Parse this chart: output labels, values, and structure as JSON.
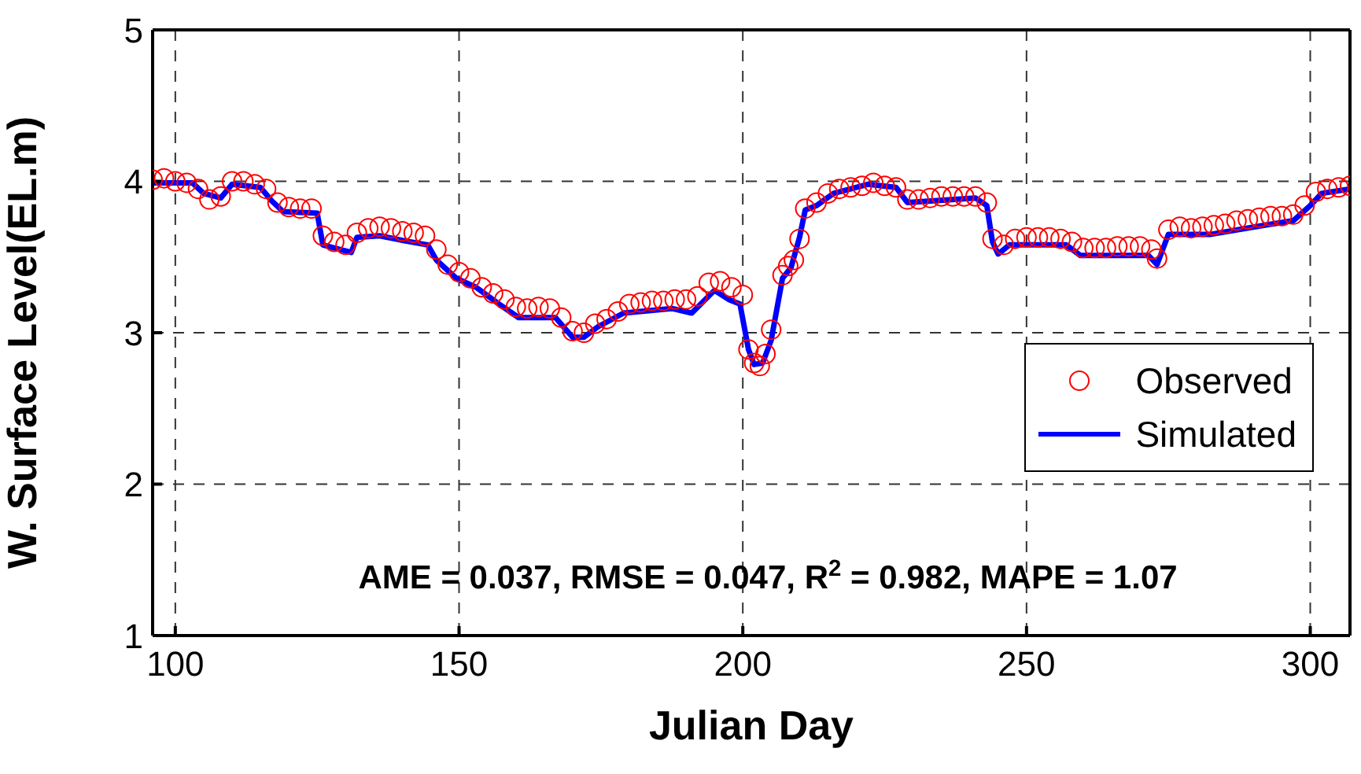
{
  "chart_data": {
    "type": "line",
    "xlabel": "Julian Day",
    "ylabel": "W. Surface Level(EL.m)",
    "xlim": [
      96,
      307
    ],
    "xticks": [
      100,
      150,
      200,
      250,
      300
    ],
    "ylim": [
      1,
      5
    ],
    "yticks": [
      1,
      2,
      3,
      4,
      5
    ],
    "grid": true,
    "legend": "right",
    "annotations": [
      "AME = 0.037, RMSE = 0.047, R$^{2}$ = 0.982, MAPE = 1.07"
    ],
    "series": [
      {
        "name": "Observed",
        "type": "scatter",
        "marker": "circle",
        "color": "#ff0000",
        "x": [
          96,
          98,
          100,
          102,
          104,
          106,
          108,
          110,
          112,
          114,
          116,
          118,
          120,
          122,
          124,
          126,
          128,
          130,
          132,
          134,
          136,
          138,
          140,
          142,
          144,
          146,
          148,
          150,
          152,
          154,
          156,
          158,
          160,
          162,
          164,
          166,
          168,
          170,
          172,
          174,
          176,
          178,
          180,
          182,
          184,
          186,
          188,
          190,
          192,
          194,
          196,
          198,
          200,
          201,
          202,
          203,
          204,
          205,
          207,
          208,
          209,
          210,
          211,
          213,
          215,
          217,
          219,
          221,
          223,
          225,
          227,
          229,
          231,
          233,
          235,
          237,
          239,
          241,
          243,
          244,
          246,
          248,
          250,
          252,
          254,
          256,
          258,
          260,
          262,
          264,
          266,
          268,
          270,
          272,
          273,
          275,
          277,
          279,
          281,
          283,
          285,
          287,
          289,
          291,
          293,
          295,
          297,
          299,
          301,
          303,
          305,
          307
        ],
        "values": [
          4.01,
          4.02,
          4.0,
          3.99,
          3.95,
          3.88,
          3.9,
          4.0,
          4.0,
          3.98,
          3.95,
          3.86,
          3.83,
          3.82,
          3.82,
          3.64,
          3.6,
          3.58,
          3.66,
          3.69,
          3.7,
          3.69,
          3.67,
          3.66,
          3.64,
          3.55,
          3.45,
          3.4,
          3.36,
          3.3,
          3.26,
          3.22,
          3.17,
          3.16,
          3.17,
          3.16,
          3.1,
          3.01,
          3.0,
          3.06,
          3.09,
          3.14,
          3.19,
          3.2,
          3.21,
          3.21,
          3.22,
          3.22,
          3.24,
          3.33,
          3.34,
          3.3,
          3.25,
          2.89,
          2.8,
          2.78,
          2.86,
          3.02,
          3.38,
          3.44,
          3.48,
          3.62,
          3.82,
          3.86,
          3.92,
          3.95,
          3.96,
          3.97,
          3.99,
          3.97,
          3.96,
          3.88,
          3.88,
          3.89,
          3.9,
          3.9,
          3.9,
          3.9,
          3.86,
          3.62,
          3.58,
          3.62,
          3.63,
          3.63,
          3.63,
          3.62,
          3.6,
          3.56,
          3.56,
          3.56,
          3.57,
          3.57,
          3.57,
          3.55,
          3.49,
          3.68,
          3.7,
          3.69,
          3.7,
          3.71,
          3.72,
          3.74,
          3.75,
          3.76,
          3.77,
          3.77,
          3.78,
          3.84,
          3.93,
          3.95,
          3.96,
          3.97
        ]
      },
      {
        "name": "Simulated",
        "line_style": "solid",
        "color": "#0000ff",
        "x": [
          96,
          103,
          105,
          108,
          110,
          115,
          117,
          119,
          125,
          126,
          129,
          131,
          132,
          136,
          140,
          144.5,
          146,
          149.5,
          153,
          157,
          160.5,
          167,
          170,
          172,
          174.5,
          179,
          187.5,
          191,
          195,
          197.5,
          199.5,
          201,
          202,
          203.5,
          205,
          207,
          208.5,
          210,
          211,
          213,
          216,
          222,
          227,
          229,
          241,
          243,
          244,
          245,
          247,
          257,
          259.5,
          271.5,
          273,
          275,
          282.5,
          292,
          297,
          300,
          302,
          307
        ],
        "values": [
          3.99,
          3.99,
          3.92,
          3.89,
          3.98,
          3.96,
          3.87,
          3.8,
          3.79,
          3.58,
          3.55,
          3.53,
          3.63,
          3.64,
          3.61,
          3.58,
          3.48,
          3.36,
          3.3,
          3.19,
          3.1,
          3.1,
          2.97,
          2.97,
          3.04,
          3.13,
          3.16,
          3.13,
          3.28,
          3.22,
          3.19,
          2.89,
          2.79,
          2.8,
          2.95,
          3.36,
          3.43,
          3.63,
          3.81,
          3.84,
          3.92,
          3.98,
          3.96,
          3.86,
          3.89,
          3.84,
          3.6,
          3.52,
          3.58,
          3.58,
          3.51,
          3.51,
          3.45,
          3.65,
          3.65,
          3.71,
          3.74,
          3.84,
          3.92,
          3.95
        ]
      }
    ]
  }
}
